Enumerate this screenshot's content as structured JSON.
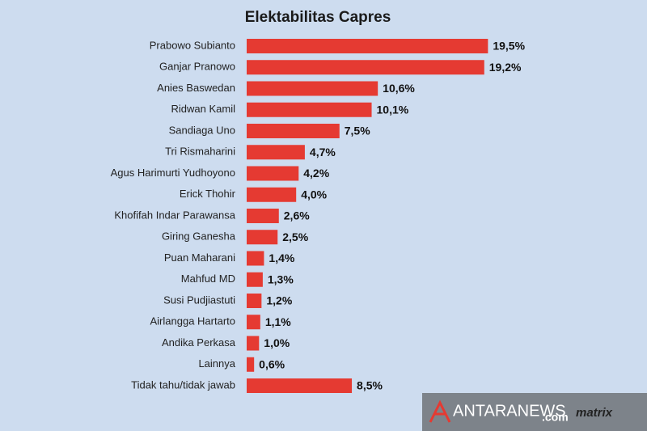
{
  "chart_data": {
    "type": "hbar",
    "title": "Elektabilitas Capres",
    "categories": [
      "Prabowo Subianto",
      "Ganjar Pranowo",
      "Anies Baswedan",
      "Ridwan Kamil",
      "Sandiaga Uno",
      "Tri Rismaharini",
      "Agus Harimurti Yudhoyono",
      "Erick Thohir",
      "Khofifah Indar Parawansa",
      "Giring Ganesha",
      "Puan Maharani",
      "Mahfud MD",
      "Susi Pudjiastuti",
      "Airlangga Hartarto",
      "Andika Perkasa",
      "Lainnya",
      "Tidak tahu/tidak jawab"
    ],
    "values": [
      19.5,
      19.2,
      10.6,
      10.1,
      7.5,
      4.7,
      4.2,
      4.0,
      2.6,
      2.5,
      1.4,
      1.3,
      1.2,
      1.1,
      1.0,
      0.6,
      8.5
    ],
    "value_labels": [
      "19,5%",
      "19,2%",
      "10,6%",
      "10,1%",
      "7,5%",
      "4,7%",
      "4,2%",
      "4,0%",
      "2,6%",
      "2,5%",
      "1,4%",
      "1,3%",
      "1,2%",
      "1,1%",
      "1,0%",
      "0,6%",
      "8,5%"
    ],
    "color": "#e53a32"
  },
  "watermark": {
    "text": "ANTARANEWS",
    "suffix": ".com",
    "brand": "matrix"
  }
}
